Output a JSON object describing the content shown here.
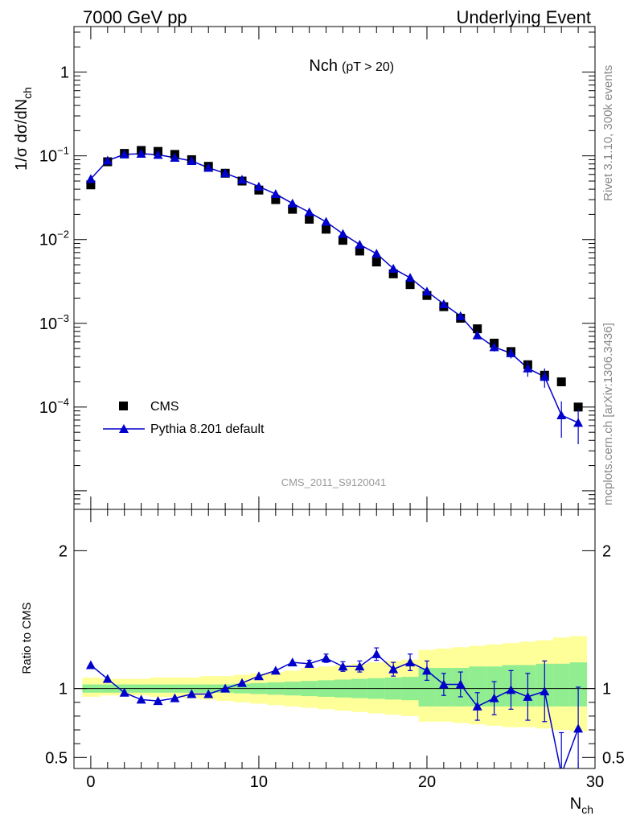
{
  "header": {
    "left": "7000 GeV pp",
    "right": "Underlying Event"
  },
  "side_text": {
    "rivet": "Rivet 3.1.10,  300k events",
    "mcplots": "mcplots.cern.ch [arXiv:1306.3436]"
  },
  "analysis_label": "CMS_2011_S9120041",
  "chart_data": [
    {
      "type": "scatter",
      "panel": "main",
      "title": "Nch",
      "title_suffix": "(pT > 20)",
      "xlabel": "N",
      "xlabel_sub": "ch",
      "ylabel": "1/σ dσ/dN",
      "ylabel_sub": "ch",
      "yscale": "log",
      "xlim": [
        -1,
        30
      ],
      "ylim": [
        6e-06,
        3.5
      ],
      "yticks": [
        0.0001,
        0.001,
        0.01,
        0.1,
        1
      ],
      "ytick_labels": [
        {
          "base": "10",
          "exp": "−4"
        },
        {
          "base": "10",
          "exp": "−3"
        },
        {
          "base": "10",
          "exp": "−2"
        },
        {
          "base": "10",
          "exp": "−1"
        },
        {
          "base": "1",
          "exp": ""
        }
      ],
      "legend_position": "lower-left",
      "series": [
        {
          "name": "CMS",
          "marker": "square",
          "color": "#000000",
          "x": [
            0,
            1,
            2,
            3,
            4,
            5,
            6,
            7,
            8,
            9,
            10,
            11,
            12,
            13,
            14,
            15,
            16,
            17,
            18,
            19,
            20,
            21,
            22,
            23,
            24,
            25,
            26,
            27,
            28,
            29
          ],
          "y": [
            0.045,
            0.085,
            0.107,
            0.116,
            0.113,
            0.104,
            0.09,
            0.075,
            0.062,
            0.05,
            0.039,
            0.03,
            0.023,
            0.0175,
            0.0133,
            0.0098,
            0.0073,
            0.0054,
            0.0039,
            0.0029,
            0.00215,
            0.00158,
            0.00115,
            0.00086,
            0.00058,
            0.00046,
            0.00032,
            0.00024,
            0.0002,
            0.0001
          ],
          "yerr": [
            0.0018,
            0.0035,
            0.004,
            0.004,
            0.004,
            0.0035,
            0.003,
            0.0025,
            0.002,
            0.0017,
            0.0013,
            0.001,
            0.0008,
            0.0006,
            0.0005,
            0.0004,
            0.0003,
            0.0002,
            0.00016,
            0.00013,
            0.0001,
            9e-05,
            8e-05,
            6e-05,
            5e-05,
            4e-05,
            3e-05,
            3e-05,
            2e-05,
            1e-05
          ]
        },
        {
          "name": "Pythia 8.201 default",
          "marker": "triangle",
          "color": "#0000cc",
          "x": [
            0,
            1,
            2,
            3,
            4,
            5,
            6,
            7,
            8,
            9,
            10,
            11,
            12,
            13,
            14,
            15,
            16,
            17,
            18,
            19,
            20,
            21,
            22,
            23,
            24,
            25,
            26,
            27,
            28,
            29
          ],
          "y": [
            0.053,
            0.088,
            0.104,
            0.106,
            0.103,
            0.095,
            0.087,
            0.072,
            0.062,
            0.052,
            0.043,
            0.035,
            0.027,
            0.0212,
            0.0163,
            0.0117,
            0.0087,
            0.0068,
            0.0045,
            0.0035,
            0.0024,
            0.0017,
            0.00122,
            0.00072,
            0.00052,
            0.00044,
            0.00029,
            0.00023,
            8e-05,
            6.5e-05
          ],
          "yerr": [
            0.0004,
            0.0005,
            0.0006,
            0.0006,
            0.0006,
            0.0005,
            0.0005,
            0.0004,
            0.0004,
            0.0004,
            0.0003,
            0.0003,
            0.0003,
            0.0003,
            0.0002,
            0.0002,
            0.0002,
            0.0002,
            0.00015,
            0.00012,
            0.0001,
            8e-05,
            8e-05,
            6e-05,
            6e-05,
            6e-05,
            6e-05,
            6e-05,
            3.7e-05,
            2.9e-05
          ]
        }
      ]
    },
    {
      "type": "line",
      "panel": "ratio",
      "ylabel": "Ratio to CMS",
      "xlabel": "N",
      "xlabel_sub": "ch",
      "xlim": [
        -1,
        30
      ],
      "ylim": [
        0.42,
        2.3
      ],
      "yticks": [
        0.5,
        1,
        2
      ],
      "ytick_labels": [
        "0.5",
        "1",
        "2"
      ],
      "xticks": [
        0,
        10,
        20,
        30
      ],
      "xtick_labels": [
        "0",
        "10",
        "20",
        "30"
      ],
      "reference_line": 1.0,
      "band_colors": {
        "stat": "#90ee90",
        "total": "#ffff99"
      },
      "bands": {
        "x": [
          0,
          1,
          2,
          3,
          4,
          5,
          6,
          7,
          8,
          9,
          10,
          11,
          12,
          13,
          14,
          15,
          16,
          17,
          18,
          19,
          20,
          21,
          22,
          23,
          24,
          25,
          26,
          27,
          28,
          29
        ],
        "stat_lo": [
          0.97,
          0.97,
          0.97,
          0.97,
          0.97,
          0.97,
          0.97,
          0.97,
          0.97,
          0.965,
          0.96,
          0.955,
          0.95,
          0.945,
          0.94,
          0.935,
          0.93,
          0.925,
          0.92,
          0.915,
          0.87,
          0.87,
          0.87,
          0.87,
          0.87,
          0.87,
          0.87,
          0.87,
          0.87,
          0.87
        ],
        "stat_hi": [
          1.03,
          1.03,
          1.03,
          1.03,
          1.03,
          1.03,
          1.03,
          1.03,
          1.03,
          1.035,
          1.04,
          1.045,
          1.05,
          1.055,
          1.06,
          1.065,
          1.07,
          1.075,
          1.08,
          1.085,
          1.15,
          1.15,
          1.15,
          1.16,
          1.16,
          1.17,
          1.17,
          1.18,
          1.18,
          1.19
        ],
        "total_lo": [
          0.94,
          0.95,
          0.95,
          0.95,
          0.94,
          0.94,
          0.93,
          0.92,
          0.91,
          0.9,
          0.89,
          0.88,
          0.87,
          0.86,
          0.85,
          0.84,
          0.83,
          0.82,
          0.81,
          0.8,
          0.76,
          0.76,
          0.75,
          0.74,
          0.73,
          0.72,
          0.72,
          0.71,
          0.7,
          0.69
        ],
        "total_hi": [
          1.08,
          1.07,
          1.07,
          1.07,
          1.08,
          1.08,
          1.08,
          1.09,
          1.09,
          1.1,
          1.11,
          1.12,
          1.13,
          1.15,
          1.16,
          1.17,
          1.18,
          1.19,
          1.2,
          1.21,
          1.28,
          1.29,
          1.3,
          1.31,
          1.32,
          1.33,
          1.34,
          1.35,
          1.37,
          1.38
        ]
      },
      "series": [
        {
          "name": "Pythia 8.201 default",
          "color": "#0000cc",
          "x": [
            0,
            1,
            2,
            3,
            4,
            5,
            6,
            7,
            8,
            9,
            10,
            11,
            12,
            13,
            14,
            15,
            16,
            17,
            18,
            19,
            20,
            21,
            22,
            23,
            24,
            25,
            26,
            27,
            28,
            29
          ],
          "y": [
            1.17,
            1.07,
            0.97,
            0.92,
            0.91,
            0.93,
            0.96,
            0.96,
            1.0,
            1.04,
            1.09,
            1.13,
            1.19,
            1.18,
            1.22,
            1.16,
            1.16,
            1.25,
            1.14,
            1.19,
            1.13,
            1.03,
            1.03,
            0.87,
            0.93,
            0.99,
            0.94,
            0.98,
            0.38,
            0.71
          ],
          "yerr": [
            0.005,
            0.005,
            0.005,
            0.005,
            0.005,
            0.005,
            0.005,
            0.006,
            0.007,
            0.01,
            0.012,
            0.015,
            0.02,
            0.025,
            0.03,
            0.035,
            0.04,
            0.045,
            0.05,
            0.06,
            0.07,
            0.08,
            0.09,
            0.1,
            0.12,
            0.14,
            0.17,
            0.22,
            0.3,
            0.3
          ]
        }
      ]
    }
  ]
}
